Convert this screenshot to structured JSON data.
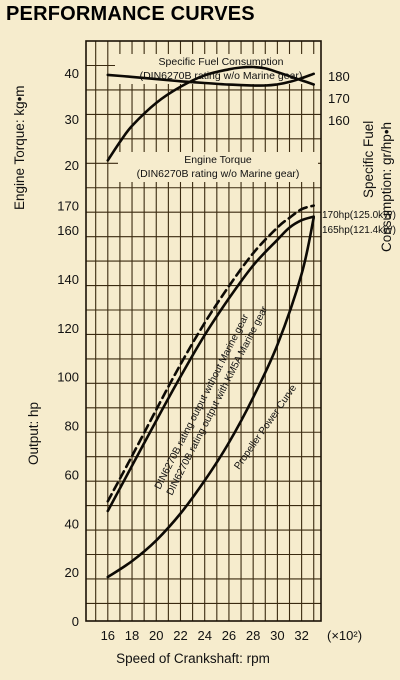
{
  "title": "PERFORMANCE CURVES",
  "chart_data": {
    "type": "line",
    "xlabel": "Speed of Crankshaft: rpm",
    "x_unit": "(×10²)",
    "x_ticks": [
      16,
      18,
      20,
      22,
      24,
      26,
      28,
      30,
      32
    ],
    "xlim": [
      14.2,
      33.6
    ],
    "panels": {
      "torque": {
        "ylabel": "Engine Torque: kg•m",
        "yticks": [
          20,
          30,
          40
        ],
        "right_ylabel": "Specific Fuel Consumption: gr/hp•h",
        "right_yticks": [
          160,
          170,
          180
        ]
      },
      "output": {
        "ylabel": "Output: hp",
        "yticks": [
          0,
          20,
          40,
          60,
          80,
          100,
          120,
          140,
          160,
          170
        ],
        "ylim": [
          0,
          170
        ]
      }
    },
    "annotations": {
      "sfc": [
        "Specific Fuel Consumption",
        "(DIN6270B rating w/o Marine gear)"
      ],
      "torque": [
        "Engine Torque",
        "(DIN6270B rating w/o Marine gear)"
      ],
      "out_without": "DIN6270B rating output without Marine gear",
      "out_with": "DIN6270B rating output with KM5A Marine gear",
      "propeller": "Propeller Power Curve",
      "rating_170": "170hp(125.0kW)",
      "rating_165": "165hp(121.4kW)"
    },
    "series": [
      {
        "name": "Specific Fuel Consumption",
        "axis": "sfc",
        "x": [
          16,
          18,
          20,
          22,
          24,
          26,
          28,
          29,
          30,
          31,
          32,
          33
        ],
        "y": [
          180.5,
          179.6,
          178.6,
          177.6,
          176.8,
          176.1,
          175.7,
          175.7,
          176.2,
          177.3,
          179.0,
          181.0
        ]
      },
      {
        "name": "Engine Torque",
        "axis": "torque",
        "x": [
          16,
          17,
          18,
          20,
          22,
          24,
          26,
          27,
          28,
          29,
          30,
          31,
          32,
          33
        ],
        "y": [
          21,
          25,
          28.5,
          33.5,
          37,
          39.5,
          40.8,
          41.2,
          41.3,
          41.0,
          40.2,
          39.3,
          38.4,
          37.5
        ]
      },
      {
        "name": "DIN6270B rating output without Marine gear",
        "axis": "output",
        "dashed": true,
        "x": [
          16,
          18,
          20,
          22,
          24,
          26,
          28,
          30,
          31,
          32,
          33
        ],
        "y": [
          49,
          67.5,
          86.5,
          105,
          122,
          137,
          150.5,
          161,
          165,
          168.5,
          170
        ]
      },
      {
        "name": "DIN6270B rating output with KM5A Marine gear",
        "axis": "output",
        "dashed": false,
        "x": [
          16,
          18,
          20,
          22,
          24,
          26,
          28,
          30,
          31,
          32,
          33
        ],
        "y": [
          45,
          63.5,
          82,
          100,
          117,
          132,
          145.5,
          156,
          161,
          164,
          165.5
        ]
      },
      {
        "name": "Propeller Power Curve",
        "axis": "output",
        "dashed": false,
        "x": [
          16,
          18,
          20,
          22,
          24,
          26,
          28,
          30,
          32,
          33
        ],
        "y": [
          18,
          24.5,
          33,
          44,
          57.5,
          73,
          91.5,
          113,
          142,
          165
        ]
      }
    ]
  }
}
